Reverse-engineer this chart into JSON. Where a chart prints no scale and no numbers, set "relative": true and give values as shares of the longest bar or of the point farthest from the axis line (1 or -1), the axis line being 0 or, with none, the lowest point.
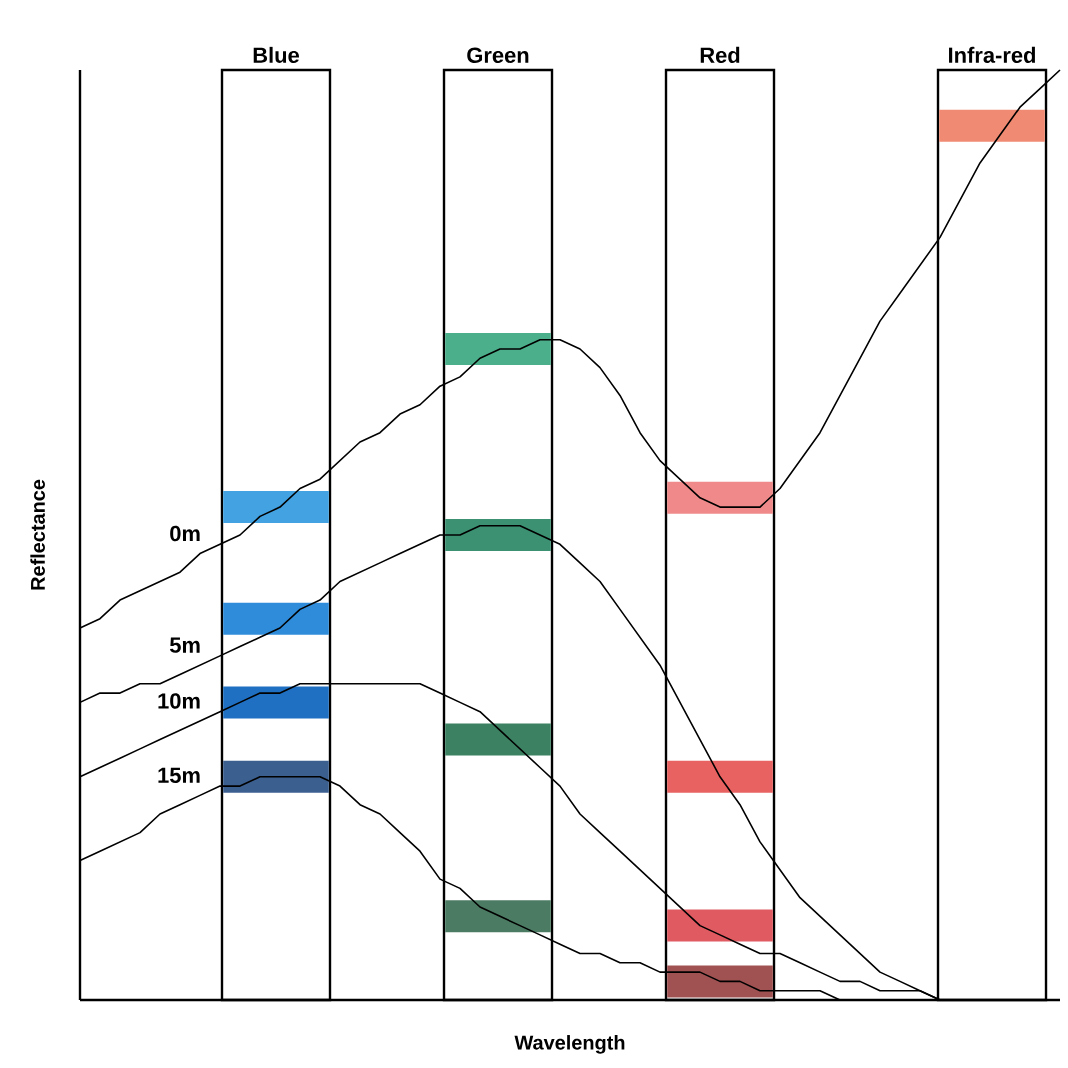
{
  "chart_data": {
    "type": "line",
    "relative": true,
    "xlabel": "Wavelength",
    "ylabel": "Reflectance",
    "annotations": [
      "Blue",
      "Green",
      "Red",
      "Infra-red"
    ],
    "categories": [
      null,
      null,
      null,
      null,
      null,
      null,
      null,
      null,
      null,
      null,
      null,
      null,
      null,
      null,
      null,
      null,
      null,
      null,
      null,
      null,
      null,
      null,
      null,
      null,
      null,
      null,
      null,
      null,
      null,
      null,
      null,
      null,
      null,
      null,
      null,
      null,
      null,
      null,
      null,
      null,
      null,
      null,
      null,
      null,
      null,
      null,
      null,
      null,
      null,
      null
    ],
    "series": [
      {
        "name": "0m",
        "color": "#000000",
        "values": [
          0.4,
          0.41,
          0.43,
          0.44,
          0.45,
          0.46,
          0.48,
          0.49,
          0.5,
          0.52,
          0.53,
          0.55,
          0.56,
          0.58,
          0.6,
          0.61,
          0.63,
          0.64,
          0.66,
          0.67,
          0.69,
          0.7,
          0.7,
          0.71,
          0.71,
          0.7,
          0.68,
          0.65,
          0.61,
          0.58,
          0.56,
          0.54,
          0.53,
          0.53,
          0.53,
          0.55,
          0.58,
          0.61,
          0.65,
          0.69,
          0.73,
          0.76,
          0.79,
          0.82,
          0.86,
          0.9,
          0.93,
          0.96,
          0.98,
          1.0
        ]
      },
      {
        "name": "5m",
        "color": "#000000",
        "values": [
          0.32,
          0.33,
          0.33,
          0.34,
          0.34,
          0.35,
          0.36,
          0.37,
          0.38,
          0.39,
          0.4,
          0.42,
          0.43,
          0.45,
          0.46,
          0.47,
          0.48,
          0.49,
          0.5,
          0.5,
          0.51,
          0.51,
          0.51,
          0.5,
          0.49,
          0.47,
          0.45,
          0.42,
          0.39,
          0.36,
          0.32,
          0.28,
          0.24,
          0.21,
          0.17,
          0.14,
          0.11,
          0.09,
          0.07,
          0.05,
          0.03,
          0.02,
          0.01,
          0,
          null,
          null,
          null,
          null,
          null,
          null
        ]
      },
      {
        "name": "10m",
        "color": "#000000",
        "values": [
          0.24,
          0.25,
          0.26,
          0.27,
          0.28,
          0.29,
          0.3,
          0.31,
          0.32,
          0.33,
          0.33,
          0.34,
          0.34,
          0.34,
          0.34,
          0.34,
          0.34,
          0.34,
          0.33,
          0.32,
          0.31,
          0.29,
          0.27,
          0.25,
          0.23,
          0.2,
          0.18,
          0.16,
          0.14,
          0.12,
          0.1,
          0.08,
          0.07,
          0.06,
          0.05,
          0.05,
          0.04,
          0.03,
          0.02,
          0.02,
          0.01,
          0.01,
          0.01,
          0,
          null,
          null,
          null,
          null,
          null,
          null
        ]
      },
      {
        "name": "15m",
        "color": "#000000",
        "values": [
          0.15,
          0.16,
          0.17,
          0.18,
          0.2,
          0.21,
          0.22,
          0.23,
          0.23,
          0.24,
          0.24,
          0.24,
          0.24,
          0.23,
          0.21,
          0.2,
          0.18,
          0.16,
          0.13,
          0.12,
          0.1,
          0.09,
          0.08,
          0.07,
          0.06,
          0.05,
          0.05,
          0.04,
          0.04,
          0.03,
          0.03,
          0.03,
          0.02,
          0.02,
          0.01,
          0.01,
          0.01,
          0.01,
          0,
          null,
          null,
          null,
          null,
          null,
          null,
          null,
          null,
          null,
          null,
          null
        ]
      }
    ]
  }
}
